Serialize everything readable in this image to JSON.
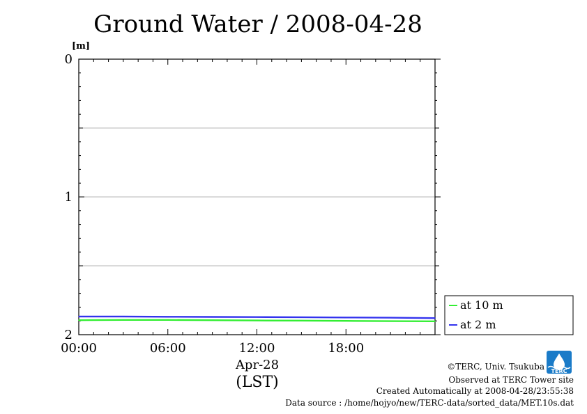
{
  "chart_data": {
    "type": "line",
    "title": "Ground Water / 2008-04-28",
    "y_unit": "[m]",
    "y_axis": {
      "min": 0,
      "max": 2,
      "inverted": true,
      "tick_labels": [
        "0",
        "1",
        "2"
      ],
      "gridlines": [
        0.5,
        1,
        1.5
      ]
    },
    "x_axis": {
      "min_hour": 0,
      "max_hour": 24,
      "tick_labels": [
        "00:00",
        "06:00",
        "12:00",
        "18:00"
      ],
      "date_label": "Apr-28",
      "timezone_label": "(LST)"
    },
    "grid": true,
    "legend_position": "right",
    "series": [
      {
        "name": "at 10 m",
        "color": "#33ee33",
        "x": [
          0,
          3,
          6,
          9,
          12,
          15,
          18,
          21,
          24
        ],
        "y": [
          1.895,
          1.893,
          1.893,
          1.895,
          1.897,
          1.898,
          1.9,
          1.902,
          1.903
        ]
      },
      {
        "name": "at 2 m",
        "color": "#3333ee",
        "x": [
          0,
          3,
          6,
          9,
          12,
          15,
          18,
          21,
          24
        ],
        "y": [
          1.868,
          1.868,
          1.87,
          1.871,
          1.872,
          1.873,
          1.875,
          1.877,
          1.88
        ]
      }
    ]
  },
  "credits": {
    "copyright": "©TERC, Univ. Tsukuba",
    "observed": "Observed at TERC Tower site",
    "created": "Created Automatically at 2008-04-28/23:55:38",
    "source": "Data source : /home/hojyo/new/TERC-data/sorted_data/MET.10s.dat",
    "logo_text": "TERC",
    "logo_color": "#1a7bc8"
  }
}
